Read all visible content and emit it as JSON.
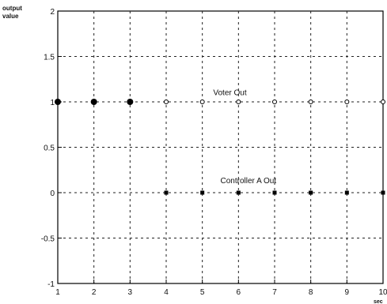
{
  "chart_data": {
    "type": "scatter",
    "ylabel_line1": "output",
    "ylabel_line2": "value",
    "xlabel_fragment": "sec",
    "xlim": [
      1,
      10
    ],
    "ylim": [
      -1,
      2
    ],
    "xticks": [
      "1",
      "2",
      "3",
      "4",
      "5",
      "6",
      "7",
      "8",
      "9",
      "10"
    ],
    "yticks": [
      "2",
      "1.5",
      "1",
      "0.5",
      "0",
      "-0.5",
      "-1"
    ],
    "grid": true,
    "series": [
      {
        "name": "Voter Out",
        "x": [
          1,
          2,
          3,
          4,
          5,
          6,
          7,
          8,
          9,
          10
        ],
        "y": [
          1,
          1,
          1,
          1,
          1,
          1,
          1,
          1,
          1,
          1
        ],
        "filled": [
          true,
          true,
          true,
          false,
          false,
          false,
          false,
          false,
          false,
          false
        ]
      },
      {
        "name": "Controller A Out",
        "x": [
          4,
          5,
          6,
          7,
          8,
          9,
          10
        ],
        "y": [
          0,
          0,
          0,
          0,
          0,
          0,
          0
        ]
      }
    ],
    "annotations": [
      {
        "text": "Voter Out",
        "x": 5.3,
        "y": 1.05
      },
      {
        "text": "Controller A Out",
        "x": 5.5,
        "y": 0.08
      }
    ]
  }
}
